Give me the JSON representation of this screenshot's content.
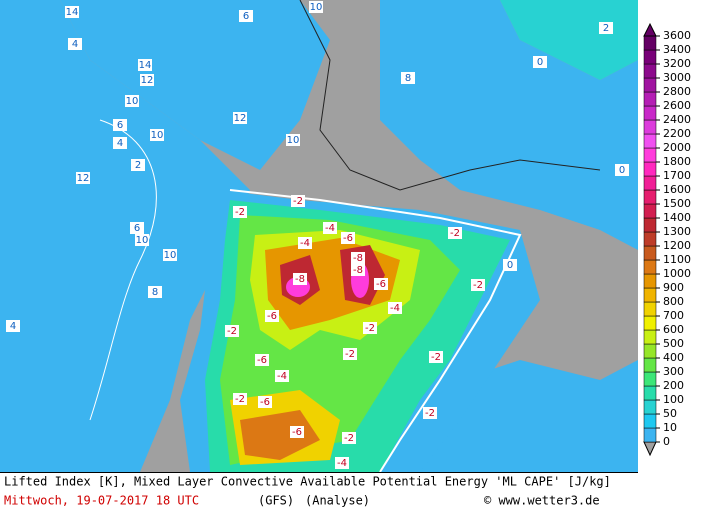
{
  "map": {
    "labels": [
      14,
      4,
      14,
      12,
      10,
      6,
      10,
      4,
      2,
      12,
      6,
      10,
      10,
      8,
      4,
      12,
      10,
      10,
      6,
      8,
      0,
      2,
      0,
      0,
      -2,
      -2,
      -4,
      -6,
      -4,
      -8,
      -8,
      -8,
      -6,
      -6,
      -2,
      -6,
      -4,
      -2,
      -6,
      -6,
      -2,
      -4,
      -2,
      -2,
      -2,
      -2,
      -2,
      -4,
      -2
    ]
  },
  "legend": {
    "levels": [
      0,
      10,
      50,
      100,
      200,
      300,
      400,
      500,
      600,
      700,
      800,
      900,
      1000,
      1100,
      1200,
      1300,
      1400,
      1500,
      1600,
      1700,
      1800,
      2000,
      2200,
      2400,
      2600,
      2800,
      3000,
      3200,
      3400,
      3600
    ],
    "colors": [
      "#3cb4f0",
      "#1ec8f0",
      "#28d2d2",
      "#28dcaa",
      "#3ce678",
      "#64e646",
      "#96e628",
      "#c8f014",
      "#f0f000",
      "#f0d200",
      "#f0b400",
      "#e69600",
      "#dc7814",
      "#c85a1e",
      "#be3c28",
      "#be2832",
      "#d21e50",
      "#e61e6e",
      "#f01e96",
      "#ff28be",
      "#ff3cdc",
      "#f050f0",
      "#dc3cdc",
      "#c828c8",
      "#b41eb4",
      "#a014a0",
      "#8c0a8c",
      "#780078",
      "#640064"
    ]
  },
  "footer": {
    "line1": "Lifted Index [K], Mixed Layer Convective Available Potential Energy 'ML CAPE' [J/kg]",
    "date": "Mittwoch, 19-07-2017  18 UTC",
    "model": "(GFS)",
    "run": "(Analyse)",
    "credit": "© www.wetter3.de"
  }
}
